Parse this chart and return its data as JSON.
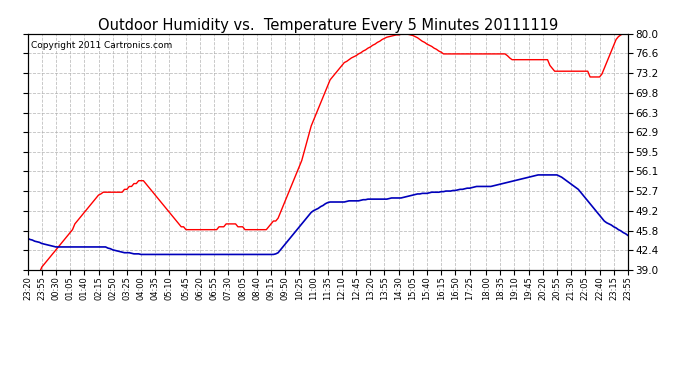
{
  "title": "Outdoor Humidity vs.  Temperature Every 5 Minutes 20111119",
  "copyright": "Copyright 2011 Cartronics.com",
  "bg_color": "#ffffff",
  "plot_bg_color": "#ffffff",
  "grid_color": "#b0b0b0",
  "line_color_red": "#ff0000",
  "line_color_blue": "#0000bb",
  "ylim": [
    39.0,
    80.0
  ],
  "yticks": [
    39.0,
    42.4,
    45.8,
    49.2,
    52.7,
    56.1,
    59.5,
    62.9,
    66.3,
    69.8,
    73.2,
    76.6,
    80.0
  ],
  "x_labels": [
    "23:20",
    "23:55",
    "00:30",
    "01:05",
    "01:40",
    "02:15",
    "02:50",
    "03:25",
    "04:00",
    "04:35",
    "05:10",
    "05:45",
    "06:20",
    "06:55",
    "07:30",
    "08:05",
    "08:40",
    "09:15",
    "09:50",
    "10:25",
    "11:00",
    "11:35",
    "12:10",
    "12:45",
    "13:20",
    "13:55",
    "14:30",
    "15:05",
    "15:40",
    "16:15",
    "16:50",
    "17:25",
    "18:00",
    "18:35",
    "19:10",
    "19:45",
    "20:20",
    "20:55",
    "21:30",
    "22:05",
    "22:40",
    "23:15",
    "23:55"
  ],
  "n_points": 255,
  "red_data": [
    39.0,
    38.5,
    38.5,
    38.5,
    38.5,
    38.5,
    39.5,
    40.0,
    40.5,
    41.0,
    41.5,
    42.0,
    42.5,
    43.0,
    43.5,
    44.0,
    44.5,
    45.0,
    45.5,
    46.0,
    47.0,
    47.5,
    48.0,
    48.5,
    49.0,
    49.5,
    50.0,
    50.5,
    51.0,
    51.5,
    52.0,
    52.2,
    52.5,
    52.5,
    52.5,
    52.5,
    52.5,
    52.5,
    52.5,
    52.5,
    52.5,
    53.0,
    53.0,
    53.5,
    53.5,
    54.0,
    54.0,
    54.5,
    54.5,
    54.5,
    54.0,
    53.5,
    53.0,
    52.5,
    52.0,
    51.5,
    51.0,
    50.5,
    50.0,
    49.5,
    49.0,
    48.5,
    48.0,
    47.5,
    47.0,
    46.5,
    46.5,
    46.0,
    46.0,
    46.0,
    46.0,
    46.0,
    46.0,
    46.0,
    46.0,
    46.0,
    46.0,
    46.0,
    46.0,
    46.0,
    46.0,
    46.5,
    46.5,
    46.5,
    47.0,
    47.0,
    47.0,
    47.0,
    47.0,
    46.5,
    46.5,
    46.5,
    46.0,
    46.0,
    46.0,
    46.0,
    46.0,
    46.0,
    46.0,
    46.0,
    46.0,
    46.0,
    46.5,
    47.0,
    47.5,
    47.5,
    48.0,
    49.0,
    50.0,
    51.0,
    52.0,
    53.0,
    54.0,
    55.0,
    56.0,
    57.0,
    58.0,
    59.5,
    61.0,
    62.5,
    64.0,
    65.0,
    66.0,
    67.0,
    68.0,
    69.0,
    70.0,
    71.0,
    72.0,
    72.5,
    73.0,
    73.5,
    74.0,
    74.5,
    75.0,
    75.2,
    75.5,
    75.8,
    76.0,
    76.2,
    76.5,
    76.7,
    77.0,
    77.2,
    77.5,
    77.7,
    78.0,
    78.2,
    78.5,
    78.7,
    79.0,
    79.2,
    79.4,
    79.5,
    79.6,
    79.7,
    79.8,
    79.8,
    79.9,
    79.9,
    80.0,
    79.9,
    79.8,
    79.7,
    79.5,
    79.3,
    79.0,
    78.7,
    78.5,
    78.2,
    78.0,
    77.8,
    77.5,
    77.3,
    77.0,
    76.8,
    76.5,
    76.5,
    76.5,
    76.5,
    76.5,
    76.5,
    76.5,
    76.5,
    76.5,
    76.5,
    76.5,
    76.5,
    76.5,
    76.5,
    76.5,
    76.5,
    76.5,
    76.5,
    76.5,
    76.5,
    76.5,
    76.5,
    76.5,
    76.5,
    76.5,
    76.5,
    76.5,
    76.2,
    75.8,
    75.5,
    75.5,
    75.5,
    75.5,
    75.5,
    75.5,
    75.5,
    75.5,
    75.5,
    75.5,
    75.5,
    75.5,
    75.5,
    75.5,
    75.5,
    75.5,
    74.5,
    74.0,
    73.5,
    73.5,
    73.5,
    73.5,
    73.5,
    73.5,
    73.5,
    73.5,
    73.5,
    73.5,
    73.5,
    73.5,
    73.5,
    73.5,
    73.5,
    72.5,
    72.5,
    72.5,
    72.5,
    72.5,
    73.0,
    74.0,
    75.0,
    76.0,
    77.0,
    78.0,
    79.0,
    79.5,
    79.8,
    80.0,
    80.0,
    80.0
  ],
  "blue_data": [
    44.5,
    44.3,
    44.2,
    44.0,
    43.9,
    43.8,
    43.6,
    43.5,
    43.4,
    43.3,
    43.2,
    43.1,
    43.0,
    43.0,
    43.0,
    43.0,
    43.0,
    43.0,
    43.0,
    43.0,
    43.0,
    43.0,
    43.0,
    43.0,
    43.0,
    43.0,
    43.0,
    43.0,
    43.0,
    43.0,
    43.0,
    43.0,
    43.0,
    43.0,
    42.8,
    42.7,
    42.5,
    42.4,
    42.3,
    42.2,
    42.1,
    42.0,
    42.0,
    42.0,
    41.9,
    41.8,
    41.8,
    41.8,
    41.7,
    41.7,
    41.7,
    41.7,
    41.7,
    41.7,
    41.7,
    41.7,
    41.7,
    41.7,
    41.7,
    41.7,
    41.7,
    41.7,
    41.7,
    41.7,
    41.7,
    41.7,
    41.7,
    41.7,
    41.7,
    41.7,
    41.7,
    41.7,
    41.7,
    41.7,
    41.7,
    41.7,
    41.7,
    41.7,
    41.7,
    41.7,
    41.7,
    41.7,
    41.7,
    41.7,
    41.7,
    41.7,
    41.7,
    41.7,
    41.7,
    41.7,
    41.7,
    41.7,
    41.7,
    41.7,
    41.7,
    41.7,
    41.7,
    41.7,
    41.7,
    41.7,
    41.7,
    41.7,
    41.7,
    41.7,
    41.7,
    41.8,
    42.0,
    42.5,
    43.0,
    43.5,
    44.0,
    44.5,
    45.0,
    45.5,
    46.0,
    46.5,
    47.0,
    47.5,
    48.0,
    48.5,
    49.0,
    49.3,
    49.5,
    49.7,
    50.0,
    50.2,
    50.5,
    50.7,
    50.8,
    50.8,
    50.8,
    50.8,
    50.8,
    50.8,
    50.8,
    50.9,
    51.0,
    51.0,
    51.0,
    51.0,
    51.0,
    51.1,
    51.2,
    51.2,
    51.3,
    51.3,
    51.3,
    51.3,
    51.3,
    51.3,
    51.3,
    51.3,
    51.3,
    51.4,
    51.5,
    51.5,
    51.5,
    51.5,
    51.5,
    51.6,
    51.7,
    51.8,
    51.9,
    52.0,
    52.1,
    52.2,
    52.2,
    52.3,
    52.3,
    52.3,
    52.4,
    52.5,
    52.5,
    52.5,
    52.5,
    52.6,
    52.6,
    52.7,
    52.7,
    52.7,
    52.8,
    52.8,
    52.9,
    53.0,
    53.0,
    53.1,
    53.2,
    53.2,
    53.3,
    53.4,
    53.5,
    53.5,
    53.5,
    53.5,
    53.5,
    53.5,
    53.5,
    53.6,
    53.7,
    53.8,
    53.9,
    54.0,
    54.1,
    54.2,
    54.3,
    54.4,
    54.5,
    54.6,
    54.7,
    54.8,
    54.9,
    55.0,
    55.1,
    55.2,
    55.3,
    55.4,
    55.5,
    55.5,
    55.5,
    55.5,
    55.5,
    55.5,
    55.5,
    55.5,
    55.5,
    55.3,
    55.1,
    54.8,
    54.5,
    54.2,
    53.9,
    53.6,
    53.3,
    53.0,
    52.5,
    52.0,
    51.5,
    51.0,
    50.5,
    50.0,
    49.5,
    49.0,
    48.5,
    48.0,
    47.5,
    47.2,
    47.0,
    46.8,
    46.5,
    46.3,
    46.0,
    45.8,
    45.5,
    45.3,
    45.0
  ]
}
